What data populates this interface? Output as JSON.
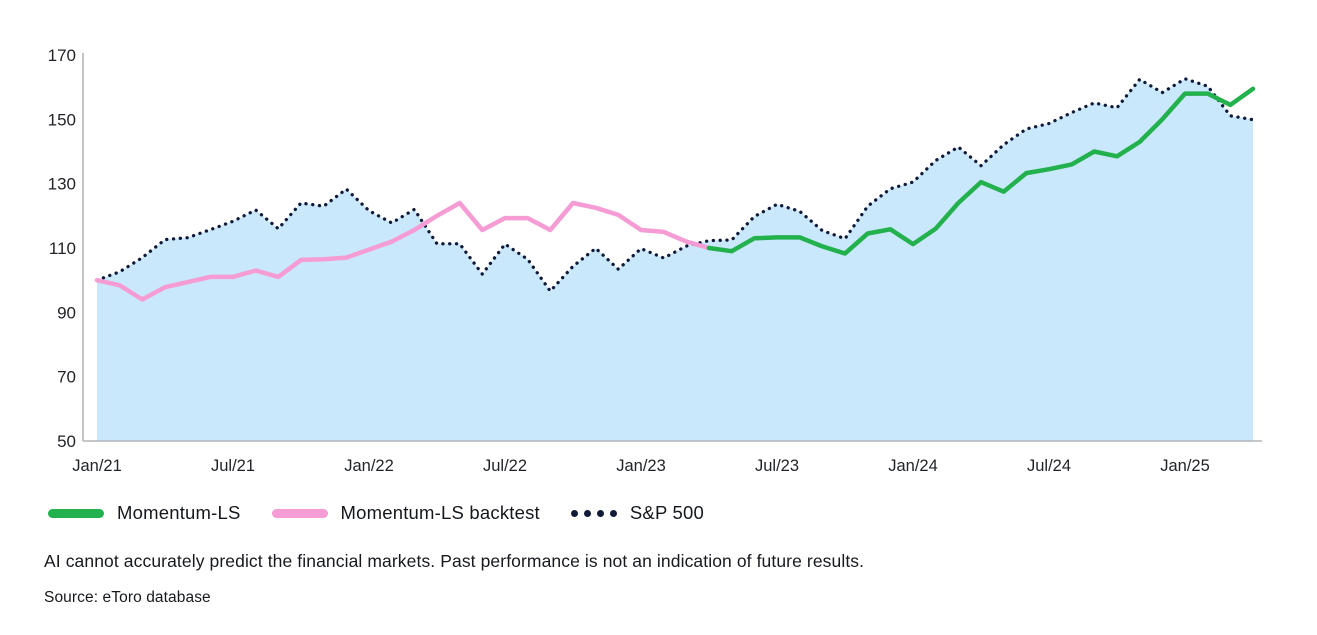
{
  "chart_data": {
    "type": "line",
    "title": "",
    "xlabel": "",
    "ylabel": "",
    "ylim": [
      50,
      170
    ],
    "grid": false,
    "legend_position": "bottom-left",
    "y_ticks": [
      170,
      150,
      130,
      110,
      90,
      70,
      50
    ],
    "x_tick_labels": [
      "Jan/21",
      "Jul/21",
      "Jan/22",
      "Jul/22",
      "Jan/23",
      "Jul/23",
      "Jan/24",
      "Jul/24",
      "Jan/25"
    ],
    "x_tick_month_indices": [
      0,
      6,
      12,
      18,
      24,
      30,
      36,
      42,
      48
    ],
    "months": [
      "Jan/21",
      "Feb/21",
      "Mar/21",
      "Apr/21",
      "May/21",
      "Jun/21",
      "Jul/21",
      "Aug/21",
      "Sep/21",
      "Oct/21",
      "Nov/21",
      "Dec/21",
      "Jan/22",
      "Feb/22",
      "Mar/22",
      "Apr/22",
      "May/22",
      "Jun/22",
      "Jul/22",
      "Aug/22",
      "Sep/22",
      "Oct/22",
      "Nov/22",
      "Dec/22",
      "Jan/23",
      "Feb/23",
      "Mar/23",
      "Apr/23",
      "May/23",
      "Jun/23",
      "Jul/23",
      "Aug/23",
      "Sep/23",
      "Oct/23",
      "Nov/23",
      "Dec/23",
      "Jan/24",
      "Feb/24",
      "Mar/24",
      "Apr/24",
      "May/24",
      "Jun/24",
      "Jul/24",
      "Aug/24",
      "Sep/24",
      "Oct/24",
      "Nov/24",
      "Dec/24",
      "Jan/25",
      "Feb/25",
      "Mar/25",
      "Apr/25"
    ],
    "series": [
      {
        "name": "S&P 500",
        "style": "dotted",
        "color": "#101a38",
        "area_fill": "#c9e8fb",
        "start_month_index": 0,
        "values": [
          100,
          102.6,
          107,
          112.6,
          113.2,
          115.7,
          118.3,
          121.8,
          116,
          124,
          123,
          128.3,
          121.6,
          117.8,
          122,
          111.3,
          111.3,
          101.9,
          111.2,
          106.5,
          96.6,
          104.3,
          109.9,
          103.4,
          109.8,
          106.9,
          110.6,
          112.3,
          112.5,
          119.8,
          123.6,
          121.4,
          115.4,
          112.9,
          123,
          128.4,
          130.5,
          137.2,
          141.4,
          135.6,
          142.1,
          147,
          148.7,
          152.1,
          155.1,
          153.6,
          162.4,
          158.3,
          162.6,
          160.3,
          151.1,
          149.9
        ]
      },
      {
        "name": "Momentum-LS backtest",
        "style": "solid",
        "color": "#f59cd5",
        "start_month_index": 0,
        "values": [
          100,
          98.4,
          94,
          97.8,
          99.4,
          101,
          101,
          103,
          101,
          106.3,
          106.5,
          107,
          109.5,
          112,
          115.6,
          120,
          124,
          115.6,
          119.3,
          119.3,
          115.6,
          124,
          122.5,
          120.3,
          115.6,
          115,
          112,
          110
        ]
      },
      {
        "name": "Momentum-LS",
        "style": "solid",
        "color": "#23b14d",
        "start_month_index": 27,
        "values": [
          110,
          109,
          113,
          113.3,
          113.3,
          110.5,
          108.3,
          114.5,
          115.8,
          111.2,
          116,
          124,
          130.5,
          127.5,
          133.3,
          134.5,
          136,
          140,
          138.5,
          143,
          150,
          158,
          158,
          154.5,
          159.5
        ]
      }
    ]
  },
  "legend": {
    "items": [
      {
        "label": "Momentum-LS",
        "swatch": "line",
        "color": "#23b14d"
      },
      {
        "label": "Momentum-LS backtest",
        "swatch": "line",
        "color": "#f59cd5"
      },
      {
        "label": "S&P 500",
        "swatch": "dots",
        "color": "#101a38"
      }
    ]
  },
  "footnotes": {
    "disclaimer": "AI cannot accurately predict the financial markets. Past performance is not an indication of future results.",
    "source": "Source: eToro database"
  },
  "style_colors": {
    "axis": "#b3b6b8",
    "tick_text": "#1f2226",
    "background": "#ffffff"
  }
}
